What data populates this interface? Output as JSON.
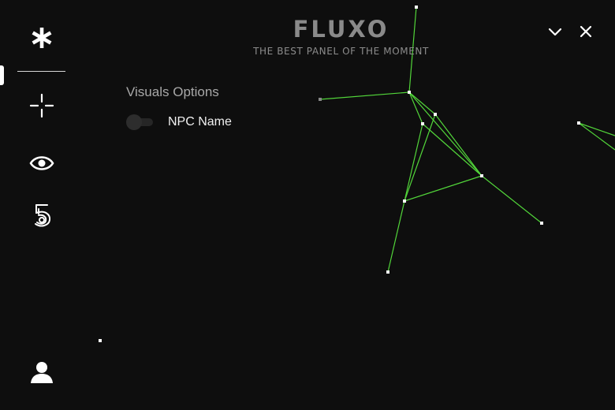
{
  "brand": {
    "title": "FLUXO",
    "subtitle": "THE BEST PANEL OF THE MOMENT"
  },
  "sidebar": {
    "items": [
      {
        "icon": "asterisk-icon",
        "active": true
      },
      {
        "icon": "crosshair-icon",
        "active": false
      },
      {
        "icon": "eye-icon",
        "active": false
      },
      {
        "icon": "badge-5-icon",
        "active": false
      }
    ],
    "bottom": {
      "icon": "user-icon"
    }
  },
  "window_controls": {
    "minimize_icon": "chevron-down-icon",
    "close_icon": "close-icon"
  },
  "content": {
    "section_title": "Visuals Options",
    "options": [
      {
        "label": "NPC Name",
        "enabled": false
      }
    ]
  },
  "colors": {
    "background": "#0e0e0e",
    "accent_line": "#52d63a",
    "node": "#ffffff",
    "brand_text": "#8a8a8a"
  }
}
